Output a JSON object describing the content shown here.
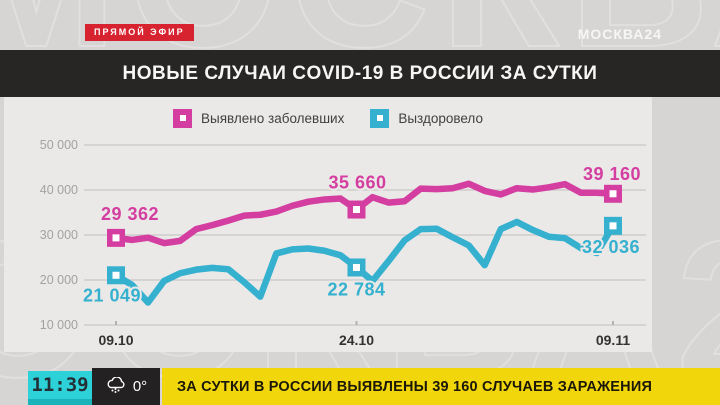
{
  "header": {
    "live_badge": "ПРЯМОЙ ЭФИР",
    "channel_logo": "МОСКВА24",
    "title": "НОВЫЕ СЛУЧАИ COVID-19 В РОССИИ ЗА СУТКИ"
  },
  "watermark_text": "МОСКВА24",
  "colors": {
    "live_red": "#d7232f",
    "cases_magenta": "#d43ea0",
    "recovered_cyan": "#35b1cf",
    "ticker_yellow": "#f0d60b",
    "clock_cyan": "#2dd2d8"
  },
  "chart_data": {
    "type": "line",
    "title": "НОВЫЕ СЛУЧАИ COVID-19 В РОССИИ ЗА СУТКИ",
    "grid": true,
    "legend_position": "top",
    "x_axis": {
      "start_date": "09.10",
      "end_date": "09.11",
      "num_points": 32,
      "ticks": [
        {
          "label": "09.10",
          "index": 0
        },
        {
          "label": "24.10",
          "index": 15
        },
        {
          "label": "09.11",
          "index": 31
        }
      ]
    },
    "y_axis": {
      "min": 10000,
      "max": 50000,
      "ticks": [
        {
          "value": 50000,
          "label": "50 000"
        },
        {
          "value": 40000,
          "label": "40 000"
        },
        {
          "value": 30000,
          "label": "30 000"
        },
        {
          "value": 20000,
          "label": "20 000"
        },
        {
          "value": 10000,
          "label": "10 000"
        }
      ]
    },
    "series": [
      {
        "name": "Выявлено заболевших",
        "color": "#d43ea0",
        "values": [
          29362,
          28900,
          29400,
          28200,
          28700,
          31300,
          32200,
          33200,
          34300,
          34500,
          35200,
          36500,
          37400,
          37900,
          38100,
          35660,
          38400,
          37200,
          37500,
          40300,
          40200,
          40400,
          41400,
          39800,
          39000,
          40400,
          40100,
          40600,
          41300,
          39400,
          39400,
          39160
        ],
        "labeled_points": [
          {
            "index": 0,
            "label": "29 362",
            "dx": 14,
            "dy": -18
          },
          {
            "index": 15,
            "label": "35 660",
            "dx": 1,
            "dy": -21
          },
          {
            "index": 31,
            "label": "39 160",
            "dx": -1,
            "dy": -14
          }
        ]
      },
      {
        "name": "Выздоровело",
        "color": "#35b1cf",
        "values": [
          21049,
          18900,
          15000,
          19800,
          21500,
          22300,
          22700,
          22400,
          19500,
          16300,
          25900,
          26800,
          27000,
          26500,
          25500,
          22784,
          19800,
          24200,
          28800,
          31300,
          31400,
          29500,
          27700,
          23300,
          31300,
          32900,
          31100,
          29600,
          29300,
          27100,
          26000,
          32036
        ],
        "labeled_points": [
          {
            "index": 0,
            "label": "21 049",
            "dx": -4,
            "dy": 26
          },
          {
            "index": 15,
            "label": "22 784",
            "dx": 0,
            "dy": 28
          },
          {
            "index": 31,
            "label": "32 036",
            "dx": -2,
            "dy": 27
          }
        ]
      }
    ]
  },
  "ticker": {
    "time": "11:39",
    "temperature": "0°",
    "headline": "ЗА СУТКИ В РОССИИ ВЫЯВЛЕНЫ 39 160 СЛУЧАЕВ ЗАРАЖЕНИЯ"
  }
}
